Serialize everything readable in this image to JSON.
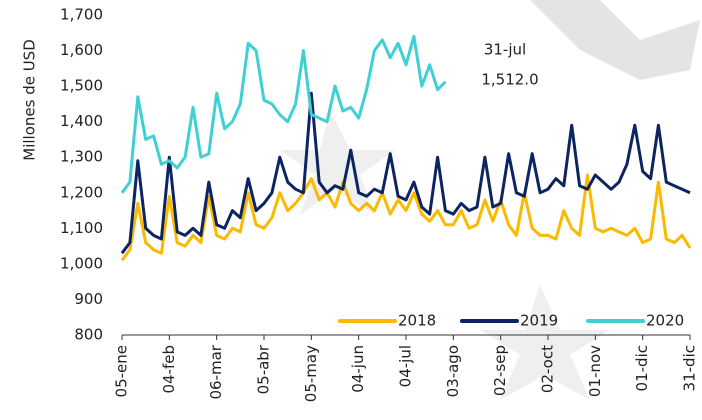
{
  "chart_data": {
    "type": "line",
    "y_label": "Millones de USD",
    "annotation": [
      "31-jul",
      "1,512.0"
    ],
    "categories": [
      "05-ene",
      null,
      null,
      null,
      null,
      null,
      "04-feb",
      null,
      null,
      null,
      null,
      null,
      "06-mar",
      null,
      null,
      null,
      null,
      null,
      "05-abr",
      null,
      null,
      null,
      null,
      null,
      "05-may",
      null,
      null,
      null,
      null,
      null,
      "04-jun",
      null,
      null,
      null,
      null,
      null,
      "04-jul",
      null,
      null,
      null,
      null,
      null,
      "03-ago",
      null,
      null,
      null,
      null,
      null,
      "02-sep",
      null,
      null,
      null,
      null,
      null,
      "02-oct",
      null,
      null,
      null,
      null,
      null,
      "01-nov",
      null,
      null,
      null,
      null,
      null,
      "01-dic",
      null,
      null,
      null,
      null,
      null,
      "31-dic"
    ],
    "series": [
      {
        "name": "2018",
        "color": "#fbb900",
        "values": [
          1010,
          1040,
          1170,
          1060,
          1040,
          1030,
          1190,
          1060,
          1050,
          1080,
          1060,
          1190,
          1080,
          1070,
          1100,
          1090,
          1200,
          1110,
          1100,
          1130,
          1200,
          1150,
          1170,
          1200,
          1240,
          1180,
          1200,
          1160,
          1230,
          1170,
          1150,
          1170,
          1150,
          1200,
          1140,
          1180,
          1150,
          1200,
          1140,
          1120,
          1150,
          1110,
          1110,
          1150,
          1100,
          1110,
          1180,
          1120,
          1180,
          1110,
          1080,
          1200,
          1100,
          1080,
          1080,
          1070,
          1150,
          1100,
          1080,
          1250,
          1100,
          1090,
          1100,
          1090,
          1080,
          1100,
          1060,
          1070,
          1230,
          1070,
          1060,
          1080,
          1045
        ]
      },
      {
        "name": "2019",
        "color": "#0c2461",
        "values": [
          1030,
          1060,
          1290,
          1100,
          1080,
          1070,
          1300,
          1090,
          1080,
          1100,
          1080,
          1230,
          1110,
          1100,
          1150,
          1130,
          1240,
          1150,
          1170,
          1200,
          1300,
          1230,
          1210,
          1200,
          1480,
          1230,
          1200,
          1220,
          1210,
          1320,
          1200,
          1190,
          1210,
          1200,
          1310,
          1190,
          1180,
          1230,
          1160,
          1140,
          1300,
          1150,
          1140,
          1170,
          1150,
          1160,
          1300,
          1160,
          1170,
          1310,
          1200,
          1190,
          1310,
          1200,
          1210,
          1240,
          1220,
          1390,
          1220,
          1210,
          1250,
          1230,
          1210,
          1230,
          1280,
          1390,
          1260,
          1240,
          1390,
          1230,
          1220,
          1210,
          1200
        ]
      },
      {
        "name": "2020",
        "color": "#3fd0d4",
        "values": [
          1200,
          1230,
          1470,
          1350,
          1360,
          1280,
          1290,
          1270,
          1300,
          1440,
          1300,
          1310,
          1480,
          1380,
          1400,
          1450,
          1620,
          1600,
          1460,
          1450,
          1420,
          1400,
          1450,
          1600,
          1420,
          1410,
          1400,
          1500,
          1430,
          1440,
          1410,
          1490,
          1600,
          1630,
          1580,
          1620,
          1560,
          1640,
          1500,
          1560,
          1490,
          1512,
          null,
          null,
          null,
          null,
          null,
          null,
          null,
          null,
          null,
          null,
          null,
          null,
          null,
          null,
          null,
          null,
          null,
          null,
          null,
          null,
          null,
          null,
          null,
          null,
          null,
          null,
          null,
          null,
          null,
          null,
          null
        ]
      }
    ],
    "ylim": [
      800,
      1700
    ],
    "yticks": [
      {
        "value": 1700,
        "label": "1,700"
      },
      {
        "value": 1600,
        "label": "1,600"
      },
      {
        "value": 1500,
        "label": "1,500"
      },
      {
        "value": 1400,
        "label": "1,400"
      },
      {
        "value": 1300,
        "label": "1,300"
      },
      {
        "value": 1200,
        "label": "1,200"
      },
      {
        "value": 1100,
        "label": "1,100"
      },
      {
        "value": 1000,
        "label": "1,000"
      },
      900,
      800
    ],
    "legend": "bottom-right"
  }
}
